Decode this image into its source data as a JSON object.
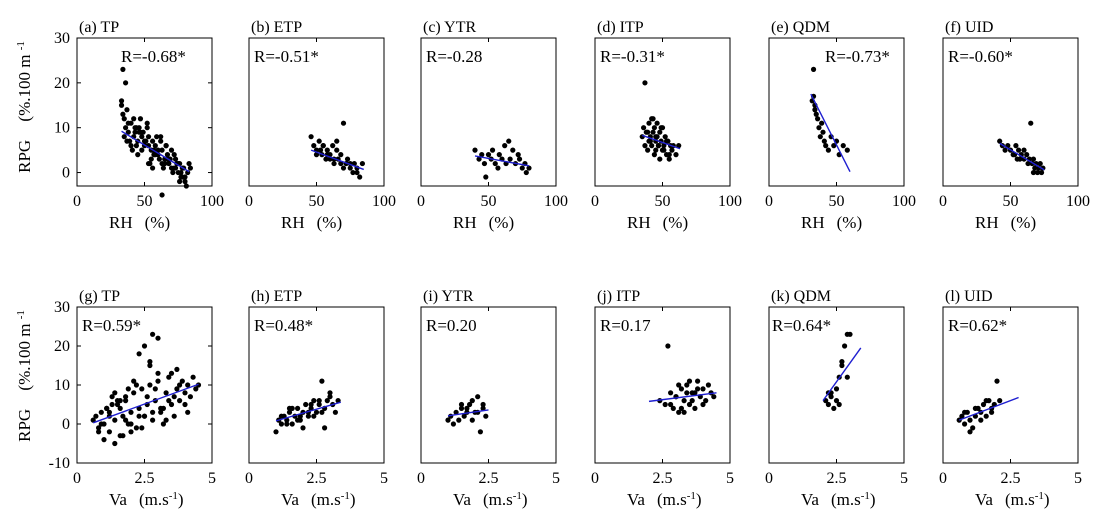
{
  "figure": {
    "y_label": "RPG",
    "y_label_unit": "(%.100 m",
    "y_label_sup": "-1",
    "row_xlabels": [
      {
        "prefix": "RH",
        "unit": "(%)",
        "sup": ""
      },
      {
        "prefix": "Va",
        "unit": "(m.s",
        "sup": "-1"
      }
    ]
  },
  "chart_data": [
    {
      "type": "scatter",
      "title": "(a) TP",
      "annotation": "R=-0.68*",
      "xlim": [
        0,
        100
      ],
      "ylim": [
        -3,
        30
      ],
      "xticks": [
        0,
        50,
        100
      ],
      "yticks": [
        0,
        10,
        20,
        30
      ],
      "x": [
        33,
        35,
        36,
        38,
        40,
        42,
        44,
        45,
        47,
        48,
        50,
        52,
        53,
        55,
        56,
        58,
        60,
        62,
        63,
        65,
        67,
        68,
        70,
        72,
        73,
        75,
        77,
        78,
        80,
        82,
        83,
        35,
        40,
        45,
        50,
        55,
        60,
        65,
        70,
        75,
        80,
        38,
        43,
        48,
        53,
        58,
        63,
        68,
        73,
        78,
        34,
        39,
        44,
        49,
        54,
        59,
        64,
        69,
        74,
        79,
        33,
        34,
        36,
        37,
        42,
        46,
        51,
        57,
        61,
        66,
        71,
        76,
        81,
        84,
        41,
        52,
        62,
        72,
        46,
        56,
        66,
        76,
        37,
        47,
        57,
        67,
        77,
        43,
        53,
        63
      ],
      "y": [
        15,
        12,
        10,
        9,
        11,
        8,
        10,
        7,
        9,
        8,
        6,
        10,
        8,
        5,
        7,
        6,
        4,
        7,
        5,
        3,
        4,
        2,
        5,
        1,
        3,
        2,
        0,
        1,
        -1,
        0,
        2,
        8,
        6,
        4,
        7,
        3,
        5,
        2,
        1,
        0,
        -2,
        11,
        9,
        5,
        6,
        4,
        2,
        3,
        1,
        -1,
        13,
        7,
        6,
        9,
        2,
        8,
        1,
        3,
        2,
        1,
        16,
        23,
        20,
        14,
        12,
        10,
        7,
        5,
        3,
        6,
        0,
        -2,
        -3,
        1,
        5,
        11,
        8,
        4,
        9,
        1,
        6,
        2,
        7,
        12,
        4,
        3,
        -1,
        10,
        2,
        -5
      ],
      "trend": [
        [
          33,
          9.2
        ],
        [
          83,
          0.2
        ]
      ]
    },
    {
      "type": "scatter",
      "title": "(b) ETP",
      "annotation": "R=-0.51*",
      "xlim": [
        0,
        100
      ],
      "ylim": [
        -3,
        30
      ],
      "xticks": [
        0,
        50,
        100
      ],
      "yticks": [],
      "x": [
        46,
        48,
        50,
        52,
        54,
        55,
        57,
        58,
        60,
        62,
        63,
        65,
        66,
        68,
        70,
        72,
        73,
        75,
        77,
        78,
        80,
        82,
        84,
        50,
        55,
        60,
        65,
        70,
        75,
        80,
        53,
        58,
        63,
        68
      ],
      "y": [
        8,
        6,
        5,
        7,
        4,
        6,
        3,
        5,
        4,
        6,
        2,
        5,
        3,
        4,
        11,
        2,
        3,
        1,
        0,
        2,
        1,
        -1,
        2,
        4,
        6,
        3,
        7,
        1,
        2,
        0,
        5,
        4,
        3,
        2
      ],
      "trend": [
        [
          46,
          5.0
        ],
        [
          85,
          0.7
        ]
      ]
    },
    {
      "type": "scatter",
      "title": "(c) YTR",
      "annotation": "R=-0.28",
      "xlim": [
        0,
        100
      ],
      "ylim": [
        -3,
        30
      ],
      "xticks": [
        0,
        50,
        100
      ],
      "yticks": [],
      "x": [
        40,
        43,
        45,
        47,
        48,
        50,
        52,
        53,
        55,
        57,
        58,
        60,
        62,
        63,
        65,
        66,
        68,
        70,
        72,
        73,
        75,
        77,
        78,
        80
      ],
      "y": [
        5,
        3,
        4,
        2,
        -1,
        4,
        3,
        5,
        2,
        1,
        4,
        3,
        6,
        2,
        7,
        3,
        5,
        2,
        4,
        3,
        1,
        2,
        0,
        1
      ],
      "trend": [
        [
          40,
          3.7
        ],
        [
          80,
          1.5
        ]
      ]
    },
    {
      "type": "scatter",
      "title": "(d) ITP",
      "annotation": "R=-0.31*",
      "xlim": [
        0,
        100
      ],
      "ylim": [
        -3,
        30
      ],
      "xticks": [
        0,
        50,
        100
      ],
      "yticks": [],
      "x": [
        35,
        36,
        37,
        38,
        39,
        40,
        40,
        41,
        42,
        42,
        43,
        44,
        44,
        45,
        45,
        46,
        46,
        47,
        48,
        48,
        49,
        50,
        50,
        51,
        52,
        53,
        54,
        55,
        56,
        57,
        58,
        60,
        62,
        37,
        39,
        41,
        43,
        45,
        47,
        49,
        51,
        53,
        55
      ],
      "y": [
        8,
        10,
        6,
        9,
        5,
        11,
        7,
        8,
        12,
        6,
        9,
        4,
        10,
        7,
        5,
        11,
        8,
        6,
        9,
        3,
        7,
        10,
        5,
        6,
        8,
        4,
        7,
        3,
        6,
        5,
        6,
        4,
        6,
        20,
        9,
        7,
        12,
        8,
        6,
        10,
        5,
        7,
        4
      ],
      "trend": [
        [
          35,
          8.3
        ],
        [
          63,
          5.3
        ]
      ]
    },
    {
      "type": "scatter",
      "title": "(e) QDM",
      "annotation": "R=-0.73*",
      "xlim": [
        0,
        100
      ],
      "ylim": [
        -3,
        30
      ],
      "xticks": [
        0,
        50,
        100
      ],
      "yticks": [],
      "x": [
        32,
        33,
        34,
        35,
        36,
        37,
        38,
        39,
        40,
        41,
        42,
        44,
        46,
        48,
        50,
        52,
        55,
        58,
        33,
        34
      ],
      "y": [
        16,
        17,
        14,
        13,
        12,
        10,
        8,
        11,
        9,
        7,
        6,
        5,
        8,
        6,
        7,
        4,
        6,
        5,
        23,
        15
      ],
      "trend": [
        [
          31,
          17.5
        ],
        [
          60,
          0.2
        ]
      ]
    },
    {
      "type": "scatter",
      "title": "(f) UID",
      "annotation": "R=-0.60*",
      "xlim": [
        0,
        100
      ],
      "ylim": [
        -3,
        30
      ],
      "xticks": [
        0,
        50,
        100
      ],
      "yticks": [],
      "x": [
        42,
        44,
        46,
        48,
        50,
        52,
        54,
        55,
        56,
        58,
        60,
        62,
        63,
        64,
        65,
        66,
        67,
        68,
        69,
        70,
        71,
        72,
        73,
        74,
        60,
        57,
        53,
        67
      ],
      "y": [
        7,
        6,
        5,
        6,
        5,
        4,
        6,
        3,
        5,
        4,
        3,
        4,
        2,
        3,
        11,
        2,
        3,
        1,
        2,
        0,
        1,
        2,
        0,
        1,
        5,
        3,
        4,
        0
      ],
      "trend": [
        [
          42,
          6.5
        ],
        [
          75,
          0.6
        ]
      ]
    },
    {
      "type": "scatter",
      "title": "(g) TP",
      "annotation": "R=0.59*",
      "xlim": [
        0,
        5
      ],
      "ylim": [
        -10,
        30
      ],
      "xticks": [
        0,
        2.5,
        5
      ],
      "yticks": [
        -10,
        0,
        10,
        20,
        30
      ],
      "x": [
        0.6,
        0.7,
        0.8,
        0.9,
        1.0,
        1.1,
        1.2,
        1.3,
        1.4,
        1.5,
        1.6,
        1.7,
        1.8,
        1.9,
        2.0,
        2.1,
        2.2,
        2.3,
        2.4,
        2.5,
        2.6,
        2.7,
        2.8,
        2.9,
        3.0,
        3.1,
        3.2,
        3.3,
        3.4,
        3.5,
        3.6,
        3.7,
        3.8,
        3.9,
        4.0,
        4.1,
        4.2,
        4.3,
        4.4,
        4.5,
        0.8,
        1.0,
        1.2,
        1.4,
        1.6,
        1.8,
        2.0,
        2.2,
        2.4,
        2.6,
        2.8,
        3.0,
        3.2,
        3.4,
        3.6,
        3.8,
        4.0,
        0.9,
        1.3,
        1.7,
        2.1,
        2.5,
        2.9,
        3.3,
        3.7,
        4.1,
        1.1,
        1.5,
        1.9,
        2.3,
        2.7,
        3.1,
        3.5,
        2.3,
        2.5,
        2.7,
        2.8,
        3.0,
        1.2,
        1.4,
        1.6,
        1.8,
        2.0
      ],
      "y": [
        1,
        2,
        -1,
        3,
        0,
        4,
        -2,
        5,
        1,
        6,
        -3,
        2,
        7,
        0,
        3,
        8,
        -1,
        4,
        9,
        2,
        5,
        10,
        1,
        6,
        11,
        3,
        4,
        8,
        12,
        5,
        7,
        9,
        6,
        11,
        8,
        10,
        7,
        12,
        9,
        10,
        -2,
        -4,
        3,
        -5,
        6,
        1,
        -2,
        10,
        -1,
        7,
        3,
        13,
        0,
        6,
        2,
        10,
        5,
        0,
        7,
        -3,
        11,
        2,
        9,
        1,
        14,
        3,
        4,
        5,
        9,
        2,
        16,
        4,
        13,
        18,
        20,
        15,
        23,
        22,
        2,
        8,
        4,
        6,
        0
      ],
      "trend": [
        [
          0.6,
          0.3
        ],
        [
          4.5,
          10.2
        ]
      ]
    },
    {
      "type": "scatter",
      "title": "(h) ETP",
      "annotation": "R=0.48*",
      "xlim": [
        0,
        5
      ],
      "ylim": [
        -10,
        30
      ],
      "xticks": [
        0,
        2.5,
        5
      ],
      "yticks": [],
      "x": [
        1.0,
        1.1,
        1.2,
        1.3,
        1.4,
        1.5,
        1.6,
        1.7,
        1.8,
        1.9,
        2.0,
        2.1,
        2.2,
        2.3,
        2.4,
        2.5,
        2.6,
        2.7,
        2.8,
        2.9,
        3.0,
        3.1,
        3.2,
        3.3,
        1.2,
        1.4,
        1.6,
        1.8,
        2.0,
        2.2,
        2.4,
        2.6,
        2.8,
        3.0,
        1.5,
        1.9,
        2.3,
        2.7
      ],
      "y": [
        -2,
        1,
        0,
        2,
        1,
        3,
        0,
        2,
        4,
        1,
        3,
        5,
        2,
        4,
        6,
        3,
        5,
        11,
        4,
        6,
        8,
        5,
        3,
        6,
        2,
        0,
        4,
        1,
        -1,
        3,
        2,
        6,
        -1,
        7,
        4,
        2,
        5,
        3
      ],
      "trend": [
        [
          1.0,
          0.8
        ],
        [
          3.4,
          5.6
        ]
      ]
    },
    {
      "type": "scatter",
      "title": "(i) YTR",
      "annotation": "R=0.20",
      "xlim": [
        0,
        5
      ],
      "ylim": [
        -10,
        30
      ],
      "xticks": [
        0,
        2.5,
        5
      ],
      "yticks": [],
      "x": [
        1.0,
        1.1,
        1.2,
        1.3,
        1.4,
        1.5,
        1.6,
        1.7,
        1.8,
        1.9,
        2.0,
        2.1,
        2.2,
        2.3,
        2.4,
        1.5,
        1.7,
        1.9,
        2.1,
        2.3
      ],
      "y": [
        1,
        2,
        0,
        3,
        1,
        4,
        2,
        3,
        5,
        1,
        3,
        7,
        -2,
        4,
        2,
        5,
        4,
        6,
        3,
        5
      ],
      "trend": [
        [
          1.0,
          2.1
        ],
        [
          2.5,
          3.6
        ]
      ]
    },
    {
      "type": "scatter",
      "title": "(j) ITP",
      "annotation": "R=0.17",
      "xlim": [
        0,
        5
      ],
      "ylim": [
        -10,
        30
      ],
      "xticks": [
        0,
        2.5,
        5
      ],
      "yticks": [],
      "x": [
        2.4,
        2.6,
        2.8,
        2.9,
        3.0,
        3.1,
        3.2,
        3.3,
        3.4,
        3.5,
        3.6,
        3.7,
        3.8,
        3.9,
        4.0,
        4.1,
        4.2,
        4.3,
        4.4,
        2.8,
        3.0,
        3.2,
        3.4,
        3.6,
        3.8,
        4.0,
        3.1,
        3.3,
        3.5,
        3.7,
        2.7
      ],
      "y": [
        6,
        5,
        8,
        4,
        7,
        3,
        9,
        6,
        10,
        5,
        8,
        4,
        11,
        7,
        9,
        6,
        10,
        8,
        7,
        5,
        7,
        4,
        8,
        6,
        9,
        5,
        10,
        3,
        11,
        8,
        20
      ],
      "trend": [
        [
          2.0,
          5.8
        ],
        [
          4.5,
          8.0
        ]
      ]
    },
    {
      "type": "scatter",
      "title": "(k) QDM",
      "annotation": "R=0.64*",
      "xlim": [
        0,
        5
      ],
      "ylim": [
        -10,
        30
      ],
      "xticks": [
        0,
        2.5,
        5
      ],
      "yticks": [],
      "x": [
        2.1,
        2.2,
        2.3,
        2.4,
        2.5,
        2.6,
        2.7,
        2.8,
        2.9,
        3.0,
        2.3,
        2.5,
        2.7,
        2.9,
        2.2,
        2.6
      ],
      "y": [
        6,
        5,
        7,
        4,
        9,
        12,
        16,
        20,
        23,
        23,
        8,
        6,
        15,
        12,
        8,
        5
      ],
      "trend": [
        [
          2.0,
          6.0
        ],
        [
          3.4,
          19.5
        ]
      ]
    },
    {
      "type": "scatter",
      "title": "(l) UID",
      "annotation": "R=0.62*",
      "xlim": [
        0,
        5
      ],
      "ylim": [
        -10,
        30
      ],
      "xticks": [
        0,
        2.5,
        5
      ],
      "yticks": [],
      "x": [
        0.6,
        0.7,
        0.8,
        0.9,
        1.0,
        1.1,
        1.2,
        1.3,
        1.4,
        1.5,
        1.6,
        1.7,
        1.8,
        1.9,
        2.0,
        2.1,
        0.8,
        1.0,
        1.2,
        1.4,
        1.6,
        1.8
      ],
      "y": [
        1,
        2,
        0,
        3,
        1,
        -1,
        2,
        4,
        3,
        5,
        2,
        6,
        4,
        5,
        11,
        6,
        3,
        -2,
        4,
        1,
        6,
        3
      ],
      "trend": [
        [
          0.6,
          1.0
        ],
        [
          2.8,
          6.8
        ]
      ]
    }
  ]
}
